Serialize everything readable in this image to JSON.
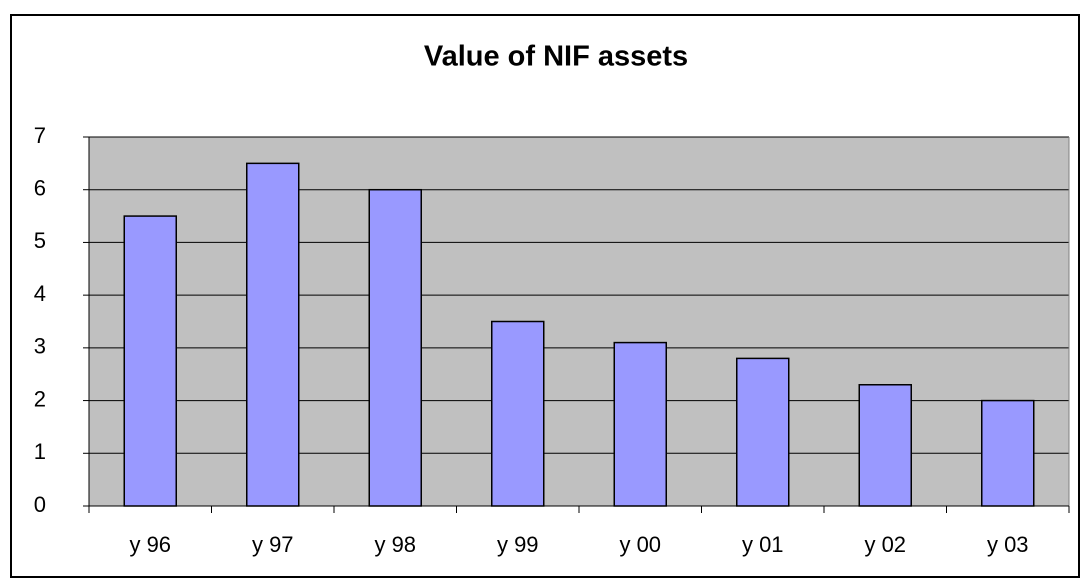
{
  "chart_data": {
    "type": "bar",
    "title": "Value of NIF assets",
    "categories": [
      "y 96",
      "y 97",
      "y 98",
      "y 99",
      "y 00",
      "y 01",
      "y 02",
      "y 03"
    ],
    "values": [
      5.5,
      6.5,
      6,
      3.5,
      3.1,
      2.8,
      2.3,
      2
    ],
    "color": "#9999ff",
    "ylim": [
      0,
      7
    ],
    "yticks": [
      0,
      1,
      2,
      3,
      4,
      5,
      6,
      7
    ],
    "grid": true
  }
}
